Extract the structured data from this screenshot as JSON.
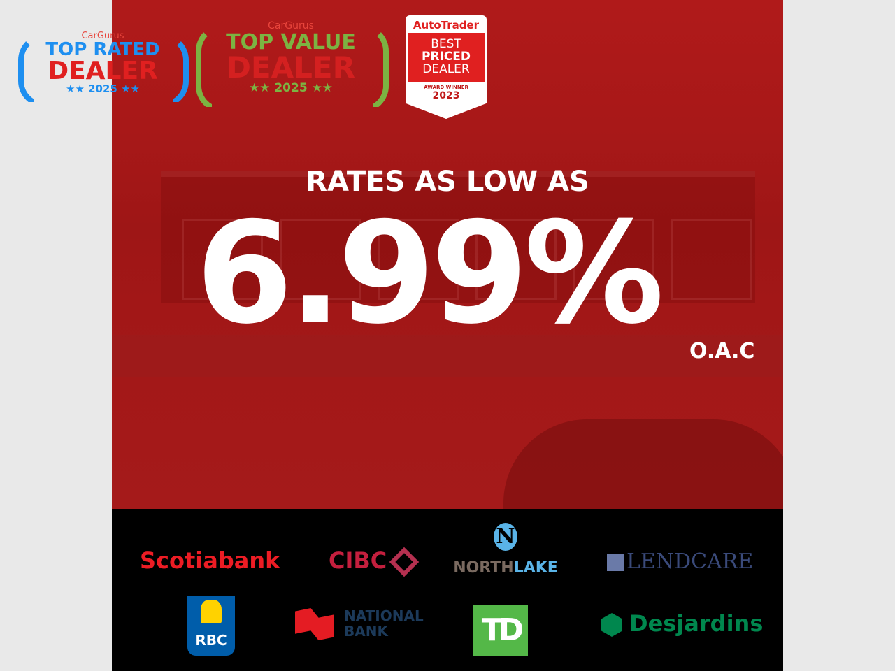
{
  "awards": [
    {
      "brand": "CarGurus",
      "line1": "TOP RATED",
      "line2": "DEALER",
      "year": "★★ 2025 ★★",
      "color": "#1e8ff0"
    },
    {
      "brand": "CarGurus",
      "line1": "TOP VALUE",
      "line2": "DEALER",
      "year": "★★ 2025 ★★",
      "color": "#7cb342"
    },
    {
      "brand": "AutoTrader",
      "line1": "BEST",
      "line2": "PRICED",
      "line3": "DEALER",
      "sub": "AWARD WINNER",
      "year": "2023",
      "color": "#e02020"
    }
  ],
  "headline": "RATES AS LOW AS",
  "rate": "6.99%",
  "rate_note": "O.A.C",
  "partners": [
    {
      "name": "Scotiabank",
      "color": "#ec1c24"
    },
    {
      "name": "CIBC",
      "color": "#c41f3e"
    },
    {
      "name_a": "NORTH",
      "name_b": "LAKE",
      "mark": "N"
    },
    {
      "name": "LENDCARE",
      "color": "#2a3a6a"
    },
    {
      "name": "RBC",
      "color": "#005daa"
    },
    {
      "name_a": "NATIONAL",
      "name_b": "BANK",
      "color": "#1c3a5a"
    },
    {
      "name": "TD",
      "color": "#54b848"
    },
    {
      "name": "Desjardins",
      "color": "#00874e"
    }
  ],
  "colors": {
    "hero": "#a81818",
    "partners_bg": "#000000",
    "page_bg": "#e9e9e9"
  }
}
